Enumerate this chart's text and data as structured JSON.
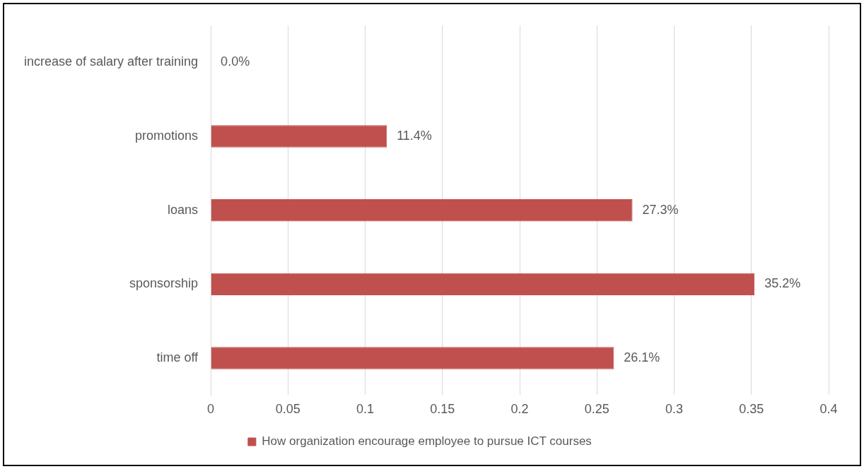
{
  "chart_data": {
    "type": "bar",
    "orientation": "horizontal",
    "categories": [
      "increase of salary after training",
      "promotions",
      "loans",
      "sponsorship",
      "time off"
    ],
    "series": [
      {
        "name": "How organization encourage employee to pursue ICT courses",
        "color": "#c0504d",
        "values": [
          0,
          0.114,
          0.273,
          0.352,
          0.261
        ],
        "value_labels": [
          "0.0%",
          "11.4%",
          "27.3%",
          "35.2%",
          "26.1%"
        ]
      }
    ],
    "xlim": [
      0,
      0.4
    ],
    "xticks": [
      0,
      0.05,
      0.1,
      0.15,
      0.2,
      0.25,
      0.3,
      0.35,
      0.4
    ],
    "grid": "x",
    "legend": "bottom"
  }
}
